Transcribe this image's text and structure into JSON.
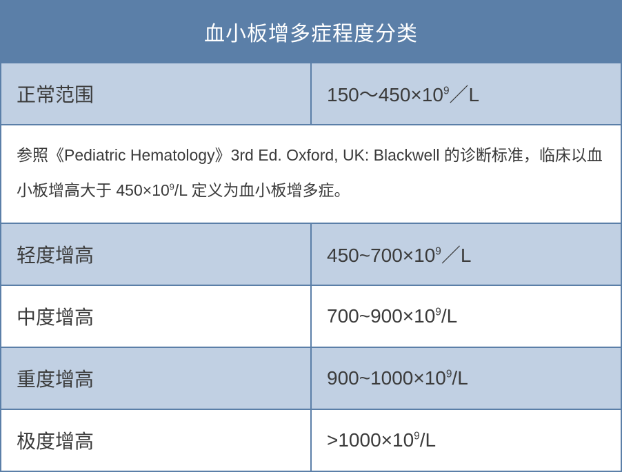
{
  "table": {
    "border_color": "#5b7fa8",
    "header": {
      "title": "血小板增多症程度分类",
      "bg": "#5b7fa8",
      "fg": "#ffffff",
      "fontsize": 30,
      "height": 85,
      "padding": "22px 12px"
    },
    "note": {
      "text_html": "参照《Pediatric Hematology》3rd Ed. Oxford, UK: Blackwell 的诊断标准，临床以血小板增高大于 450×10<sup>9</sup>/L 定义为血小板增多症。",
      "bg": "#ffffff",
      "fg": "#3a3a3a",
      "fontsize": 23,
      "padding": "18px 22px 22px 22px"
    },
    "rows": [
      {
        "label": "正常范围",
        "value_html": "150～450×10<sup>9</sup>／L",
        "bg": "#c1d0e3",
        "fg": "#3b3b3b",
        "is_note_after": true
      },
      {
        "label": "轻度增高",
        "value_html": "450~700×10<sup>9</sup>／L",
        "bg": "#c1d0e3",
        "fg": "#3b3b3b",
        "is_note_after": false
      },
      {
        "label": "中度增高",
        "value_html": "700~900×10<sup>9</sup>/L",
        "bg": "#ffffff",
        "fg": "#3b3b3b",
        "is_note_after": false
      },
      {
        "label": "重度增高",
        "value_html": "900~1000×10<sup>9</sup>/L",
        "bg": "#c1d0e3",
        "fg": "#3b3b3b",
        "is_note_after": false
      },
      {
        "label": "极度增高",
        "value_html": ">1000×10<sup>9</sup>/L",
        "bg": "#ffffff",
        "fg": "#3b3b3b",
        "is_note_after": false
      }
    ],
    "row_style": {
      "fontsize": 28,
      "height": 88,
      "padding": "24px 22px"
    }
  }
}
